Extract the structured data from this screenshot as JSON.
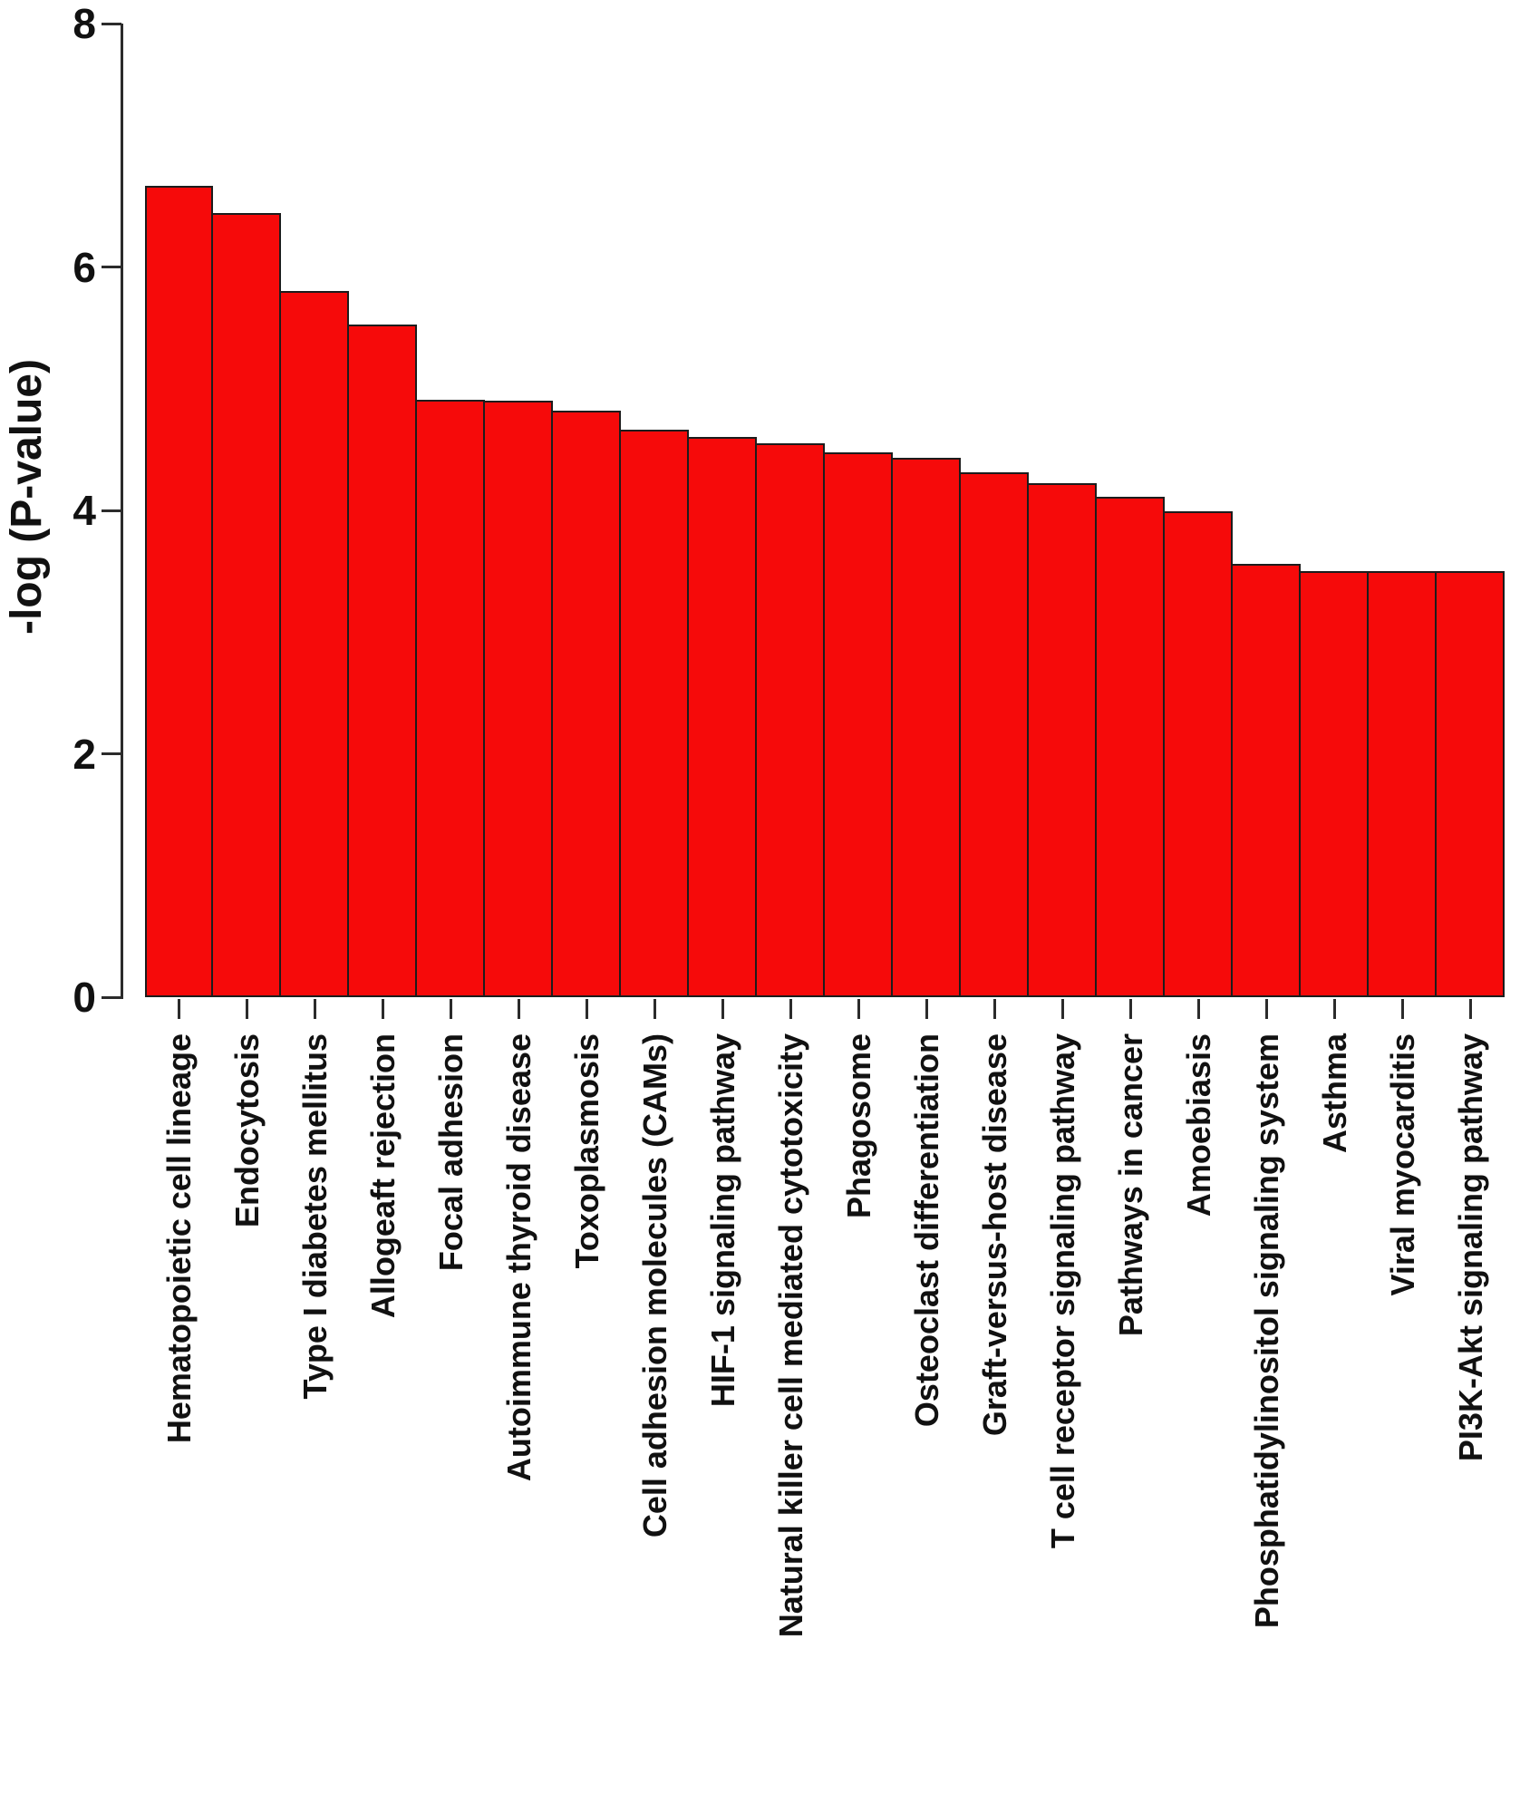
{
  "figure": {
    "background_color": "#ffffff",
    "text_color": "#111111",
    "axis_color": "#2b2b2b"
  },
  "chart_data": {
    "type": "bar",
    "title": "",
    "xlabel": "",
    "ylabel": "-log (P-value)",
    "ylim": [
      0,
      8
    ],
    "yticks": [
      0,
      2,
      4,
      6,
      8
    ],
    "grid": false,
    "legend": null,
    "bar_color": "#f60a0a",
    "bar_border_color": "#1c1c1c",
    "categories": [
      "Hematopoietic cell lineage",
      "Endocytosis",
      "Type I diabetes mellitus",
      "Allogeaft rejection",
      "Focal adhesion",
      "Autoimmune thyroid disease",
      "Toxoplasmosis",
      "Cell adhesion molecules (CAMs)",
      "HIF-1 signaling pathway",
      "Natural killer cell mediated cytotoxicity",
      "Phagosome",
      "Osteoclast differentiation",
      "Graft-versus-host disease",
      "T cell receptor signaling pathway",
      "Pathways in cancer",
      "Amoebiasis",
      "Phosphatidylinositol signaling system",
      "Asthma",
      "Viral myocarditis",
      "PI3K-Akt signaling pathway"
    ],
    "values": [
      6.67,
      6.44,
      5.8,
      5.53,
      4.91,
      4.9,
      4.82,
      4.66,
      4.6,
      4.55,
      4.48,
      4.43,
      4.31,
      4.22,
      4.11,
      3.99,
      3.56,
      3.5,
      3.5,
      3.5
    ]
  }
}
